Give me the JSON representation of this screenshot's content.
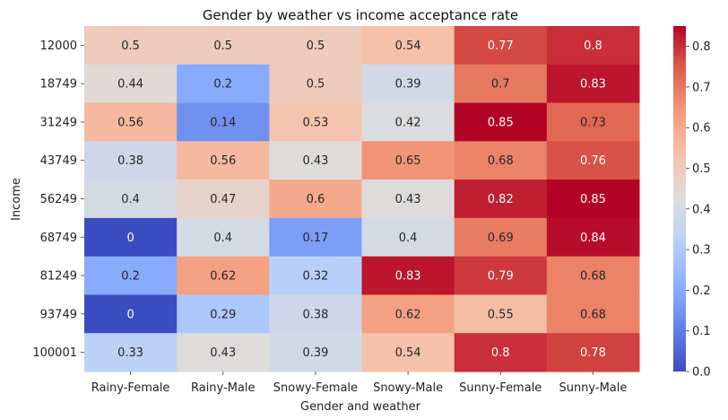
{
  "chart_data": {
    "type": "heatmap",
    "title": "Gender by weather vs income acceptance rate",
    "xlabel": "Gender and weather",
    "ylabel": "Income",
    "x_categories": [
      "Rainy-Female",
      "Rainy-Male",
      "Snowy-Female",
      "Snowy-Male",
      "Sunny-Female",
      "Sunny-Male"
    ],
    "y_categories": [
      "12000",
      "18749",
      "31249",
      "43749",
      "56249",
      "68749",
      "81249",
      "93749",
      "100001"
    ],
    "values": [
      [
        0.5,
        0.5,
        0.5,
        0.54,
        0.77,
        0.8
      ],
      [
        0.44,
        0.2,
        0.5,
        0.39,
        0.7,
        0.83
      ],
      [
        0.56,
        0.14,
        0.53,
        0.42,
        0.85,
        0.73
      ],
      [
        0.38,
        0.56,
        0.43,
        0.65,
        0.68,
        0.76
      ],
      [
        0.4,
        0.47,
        0.6,
        0.43,
        0.82,
        0.85
      ],
      [
        0,
        0.4,
        0.17,
        0.4,
        0.69,
        0.84
      ],
      [
        0.2,
        0.62,
        0.32,
        0.83,
        0.79,
        0.68
      ],
      [
        0,
        0.29,
        0.38,
        0.62,
        0.55,
        0.68
      ],
      [
        0.33,
        0.43,
        0.39,
        0.54,
        0.8,
        0.78
      ]
    ],
    "colormap": "coolwarm",
    "vmin": 0,
    "vmax": 0.85,
    "colorbar_ticks": [
      "0.0",
      "0.1",
      "0.2",
      "0.3",
      "0.4",
      "0.5",
      "0.6",
      "0.7",
      "0.8"
    ]
  }
}
